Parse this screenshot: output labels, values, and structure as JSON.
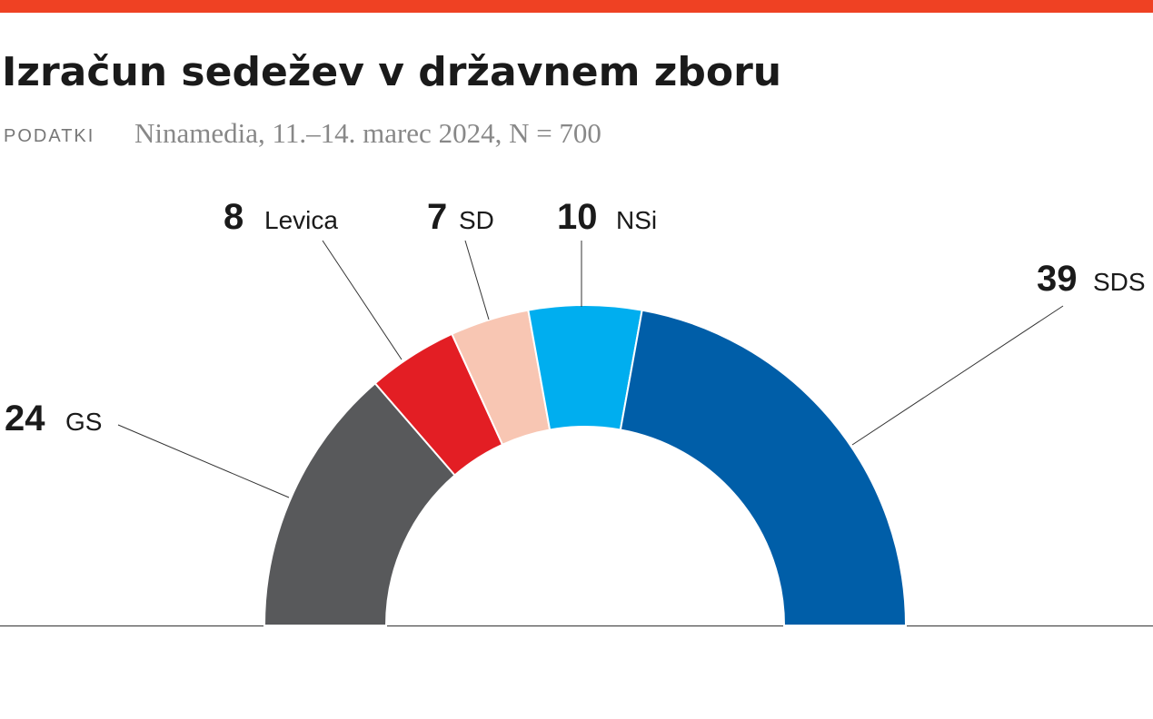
{
  "chart_data": {
    "type": "parliament",
    "title": "Izračun sedežev v državnem zboru",
    "source_label": "PODATKI",
    "subtitle": "Ninamedia, 11.–14. marec 2024, N = 700",
    "categories": [
      "GS",
      "Levica",
      "SD",
      "NSi",
      "SDS"
    ],
    "values": [
      24,
      8,
      7,
      10,
      39
    ],
    "colors": [
      "#58595b",
      "#e31e24",
      "#f8c6b3",
      "#00aeef",
      "#005ea8"
    ]
  }
}
